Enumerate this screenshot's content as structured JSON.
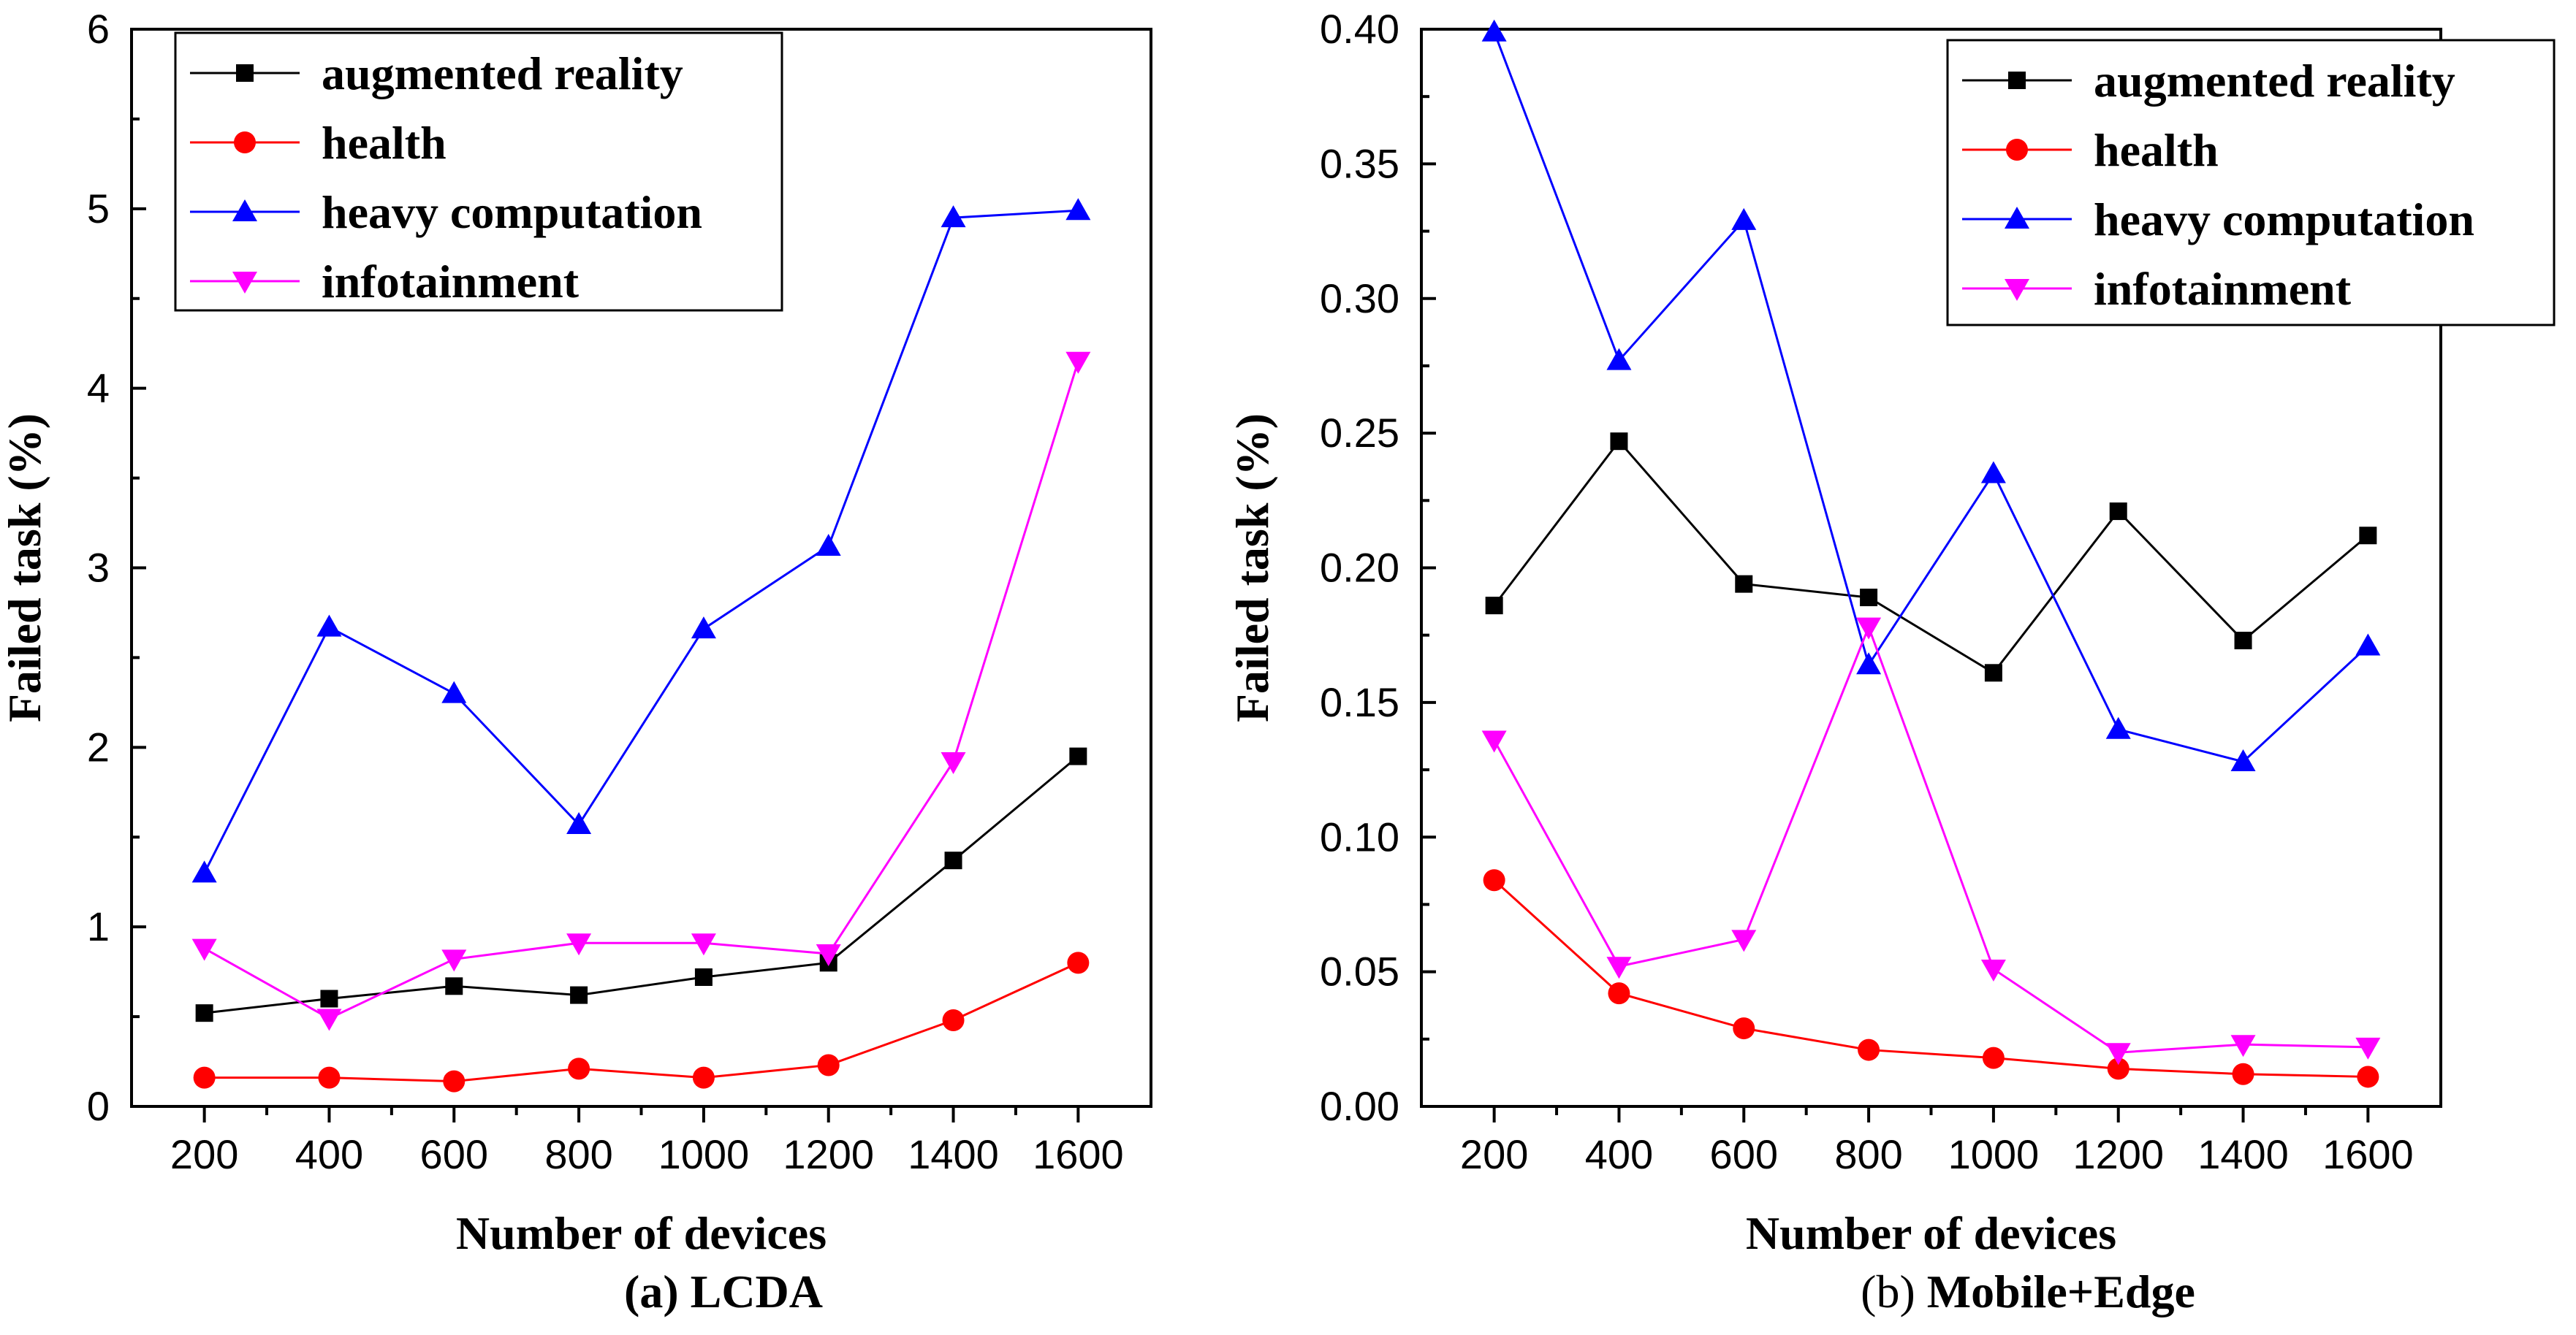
{
  "figure_title": "",
  "chart_data": [
    {
      "type": "line",
      "caption_prefix": "(a)",
      "caption_name": "LCDA",
      "xlabel": "Number of devices",
      "ylabel": "Failed task (%)",
      "x": [
        200,
        400,
        600,
        800,
        1000,
        1200,
        1400,
        1600
      ],
      "xticks": [
        "200",
        "400",
        "600",
        "800",
        "1000",
        "1200",
        "1400",
        "1600"
      ],
      "ylim": [
        0,
        6
      ],
      "yticks": [
        "0",
        "1",
        "2",
        "3",
        "4",
        "5",
        "6"
      ],
      "legend_position": "top-left",
      "series": [
        {
          "name": "augmented reality",
          "color": "#000000",
          "marker": "square",
          "values": [
            0.52,
            0.6,
            0.67,
            0.62,
            0.72,
            0.8,
            1.37,
            1.95
          ]
        },
        {
          "name": "health",
          "color": "#ff0000",
          "marker": "circle",
          "values": [
            0.16,
            0.16,
            0.14,
            0.21,
            0.16,
            0.23,
            0.48,
            0.8
          ]
        },
        {
          "name": "heavy computation",
          "color": "#0000ff",
          "marker": "triangle-up",
          "values": [
            1.3,
            2.67,
            2.3,
            1.57,
            2.66,
            3.12,
            4.95,
            4.99
          ]
        },
        {
          "name": "infotainment",
          "color": "#ff00ff",
          "marker": "triangle-down",
          "values": [
            0.88,
            0.49,
            0.82,
            0.91,
            0.91,
            0.85,
            1.92,
            4.15
          ]
        }
      ]
    },
    {
      "type": "line",
      "caption_prefix": "(b)",
      "caption_name": "Mobile+Edge",
      "xlabel": "Number of devices",
      "ylabel": "Failed task (%)",
      "x": [
        200,
        400,
        600,
        800,
        1000,
        1200,
        1400,
        1600
      ],
      "xticks": [
        "200",
        "400",
        "600",
        "800",
        "1000",
        "1200",
        "1400",
        "1600"
      ],
      "ylim": [
        0,
        0.4
      ],
      "yticks": [
        "0.00",
        "0.05",
        "0.10",
        "0.15",
        "0.20",
        "0.25",
        "0.30",
        "0.35",
        "0.40"
      ],
      "legend_position": "top-right",
      "series": [
        {
          "name": "augmented reality",
          "color": "#000000",
          "marker": "square",
          "values": [
            0.186,
            0.247,
            0.194,
            0.189,
            0.161,
            0.221,
            0.173,
            0.212
          ]
        },
        {
          "name": "health",
          "color": "#ff0000",
          "marker": "circle",
          "values": [
            0.084,
            0.042,
            0.029,
            0.021,
            0.018,
            0.014,
            0.012,
            0.011
          ]
        },
        {
          "name": "heavy computation",
          "color": "#0000ff",
          "marker": "triangle-up",
          "values": [
            0.399,
            0.277,
            0.329,
            0.164,
            0.235,
            0.14,
            0.128,
            0.171
          ]
        },
        {
          "name": "infotainment",
          "color": "#ff00ff",
          "marker": "triangle-down",
          "values": [
            0.136,
            0.052,
            0.062,
            0.178,
            0.051,
            0.02,
            0.023,
            0.022
          ]
        }
      ]
    }
  ]
}
